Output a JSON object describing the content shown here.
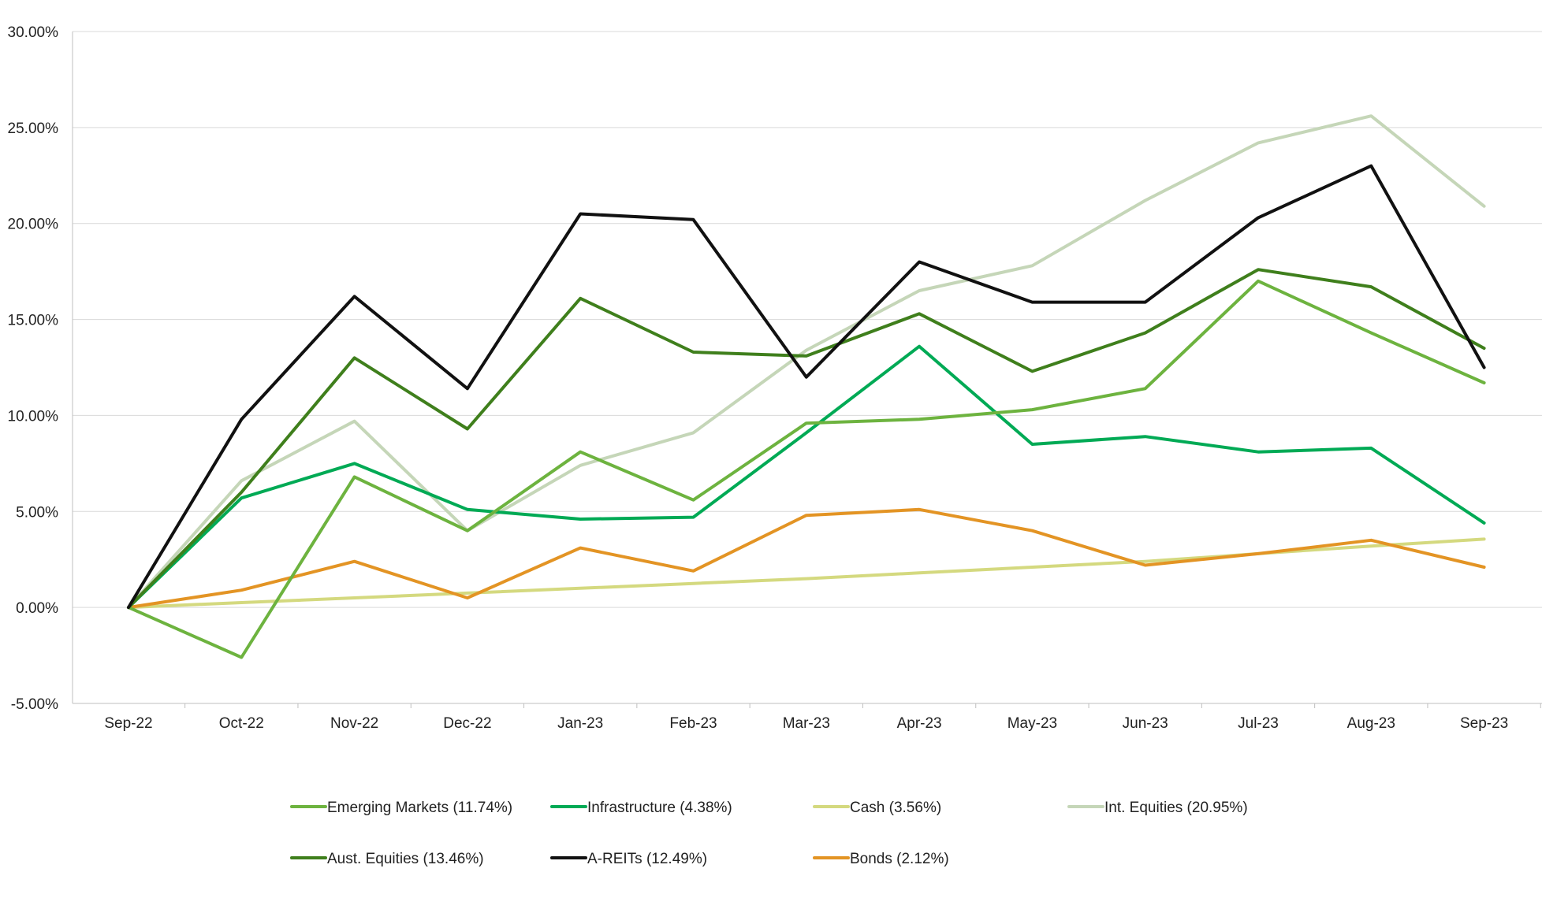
{
  "chart_data": {
    "type": "line",
    "title": "",
    "xlabel": "",
    "ylabel": "",
    "ylim": [
      -5,
      30
    ],
    "yticks": [
      -5,
      0,
      5,
      10,
      15,
      20,
      25,
      30
    ],
    "ytick_labels": [
      "-5.00%",
      "0.00%",
      "5.00%",
      "10.00%",
      "15.00%",
      "20.00%",
      "25.00%",
      "30.00%"
    ],
    "categories": [
      "Sep-22",
      "Oct-22",
      "Nov-22",
      "Dec-22",
      "Jan-23",
      "Feb-23",
      "Mar-23",
      "Apr-23",
      "May-23",
      "Jun-23",
      "Jul-23",
      "Aug-23",
      "Sep-23"
    ],
    "grid": true,
    "legend_position": "bottom",
    "series": [
      {
        "name": "Emerging Markets",
        "legend_label": "Emerging Markets (11.74%)",
        "color": "#6db33f",
        "values": [
          0,
          -2.6,
          6.8,
          4.0,
          8.1,
          5.6,
          9.6,
          9.8,
          10.3,
          11.4,
          17.0,
          14.3,
          11.7
        ]
      },
      {
        "name": "Infrastructure",
        "legend_label": "Infrastructure (4.38%)",
        "color": "#00aa55",
        "values": [
          0,
          5.7,
          7.5,
          5.1,
          4.6,
          4.7,
          9.1,
          13.6,
          8.5,
          8.9,
          8.1,
          8.3,
          4.4
        ]
      },
      {
        "name": "Cash",
        "legend_label": "Cash (3.56%)",
        "color": "#d4d97f",
        "values": [
          0,
          0.25,
          0.5,
          0.75,
          1.0,
          1.25,
          1.5,
          1.8,
          2.1,
          2.4,
          2.8,
          3.2,
          3.56
        ]
      },
      {
        "name": "Int. Equities",
        "legend_label": "Int. Equities (20.95%)",
        "color": "#c5d6b8",
        "values": [
          0,
          6.6,
          9.7,
          4.0,
          7.4,
          9.1,
          13.4,
          16.5,
          17.8,
          21.2,
          24.2,
          25.6,
          20.9
        ]
      },
      {
        "name": "Aust. Equities",
        "legend_label": "Aust. Equities (13.46%)",
        "color": "#3f7f1c",
        "values": [
          0,
          6.0,
          13.0,
          9.3,
          16.1,
          13.3,
          13.1,
          15.3,
          12.3,
          14.3,
          17.6,
          16.7,
          13.5
        ]
      },
      {
        "name": "A-REITs",
        "legend_label": "A-REITs (12.49%)",
        "color": "#111111",
        "values": [
          0,
          9.8,
          16.2,
          11.4,
          20.5,
          20.2,
          12.0,
          18.0,
          15.9,
          15.9,
          20.3,
          23.0,
          12.5
        ]
      },
      {
        "name": "Bonds",
        "legend_label": "Bonds (2.12%)",
        "color": "#e39424",
        "values": [
          0,
          0.9,
          2.4,
          0.5,
          3.1,
          1.9,
          4.8,
          5.1,
          4.0,
          2.2,
          2.8,
          3.5,
          2.1
        ]
      }
    ]
  }
}
